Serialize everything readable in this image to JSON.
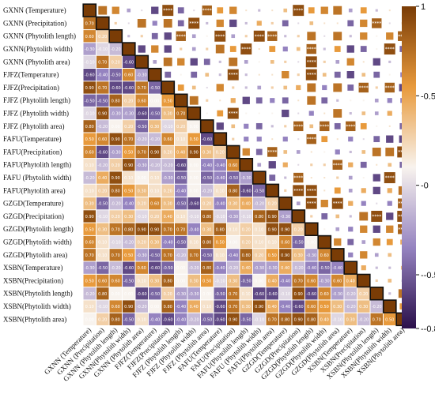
{
  "chart_data": {
    "type": "heatmap",
    "variables": [
      "GXNN (Temperature)",
      "GXNN (Precipitation)",
      "GXNN (Phytolith length)",
      "GXNN(Phytolith width)",
      "GXNN (Phytolith area)",
      "FJFZ(Temperature)",
      "FJFZ(Precipitation)",
      "FJFZ (Phytolith length)",
      "FJFZ (Phytolith width)",
      "FJFZ (Phytolith area)",
      "FAFU(Temperature)",
      "FAFU(Precipitation)",
      "FAFU(Phytolith length)",
      "FAFU (Phytolith width)",
      "FAFU(Phytolith area)",
      "GZGD(Temperature)",
      "GZGD(Precipitation)",
      "GZGD(Phytolith length)",
      "GZGD(Phytolith width)",
      "GZGD(Phytolith area)",
      "XSBN(Temperature)",
      "XSBN(Precipitation)",
      "XSBN(Phytolith length)",
      "XSBN(Phytolith width)",
      "XSBN(Phytolith area)"
    ],
    "colorbar": {
      "range": [
        -0.8,
        1
      ],
      "ticks": [
        1,
        0.5,
        0,
        -0.5,
        -0.8
      ],
      "tick_labels": [
        "1",
        "-0.5",
        "-0",
        "--0.5",
        "--0.8"
      ],
      "colors": {
        "high": "#7a3c06",
        "mid": "#f6f6f6",
        "low": "#2a0f4a"
      }
    },
    "lower_triangle": "numeric values in colored cells",
    "upper_triangle": "colored squares sized by |r| with significance stars",
    "diagonal_value": 1,
    "sample_lower_values": {
      "row2_col1": 0.7,
      "row3_col1": 0.6,
      "row3_col2": 0.2,
      "row4_col1": -0.3,
      "row4_col2": -0.1,
      "row5_col1": -0.1
    }
  }
}
